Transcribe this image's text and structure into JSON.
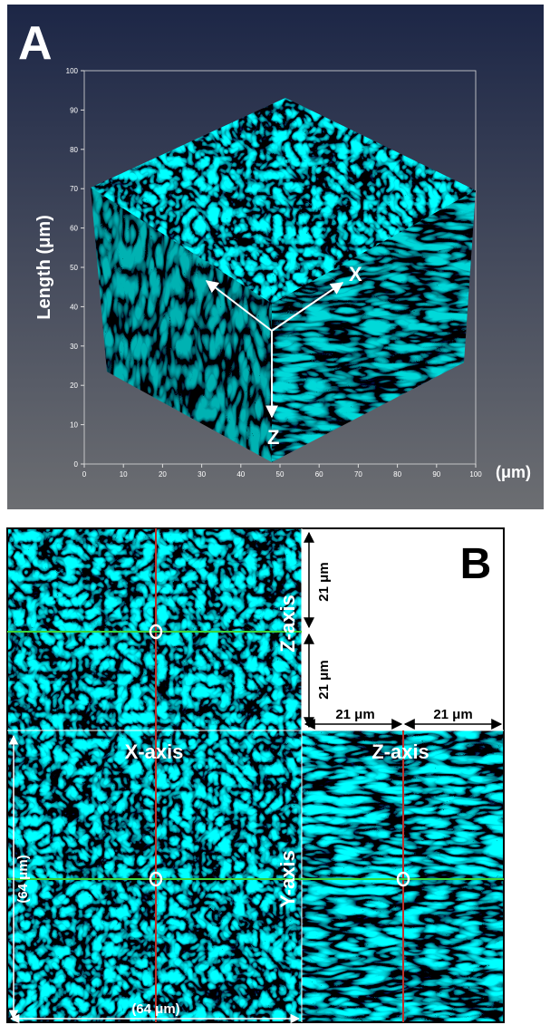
{
  "panel_a": {
    "label": "A",
    "y_axis_title": "Length (μm)",
    "x_axis_unit": "(μm)",
    "x_ticks": [
      0,
      10,
      20,
      30,
      40,
      50,
      60,
      70,
      80,
      90,
      100
    ],
    "y_ticks": [
      0,
      10,
      20,
      30,
      40,
      50,
      60,
      70,
      80,
      90,
      100
    ],
    "axis_labels": {
      "x": "X",
      "z": "Z"
    }
  },
  "panel_b": {
    "label": "B",
    "top_view": "X-axis",
    "side_view": "Z-axis",
    "top_view_depth_label": "Z-axis",
    "side_view_vertical_label": "Y-axis",
    "dimensions": {
      "z_upper": "21 μm",
      "z_lower": "21 μm",
      "z_left": "21 μm",
      "z_right": "21 μm",
      "y_extent": "(64 μm)",
      "x_extent": "(64 μm)"
    }
  }
}
